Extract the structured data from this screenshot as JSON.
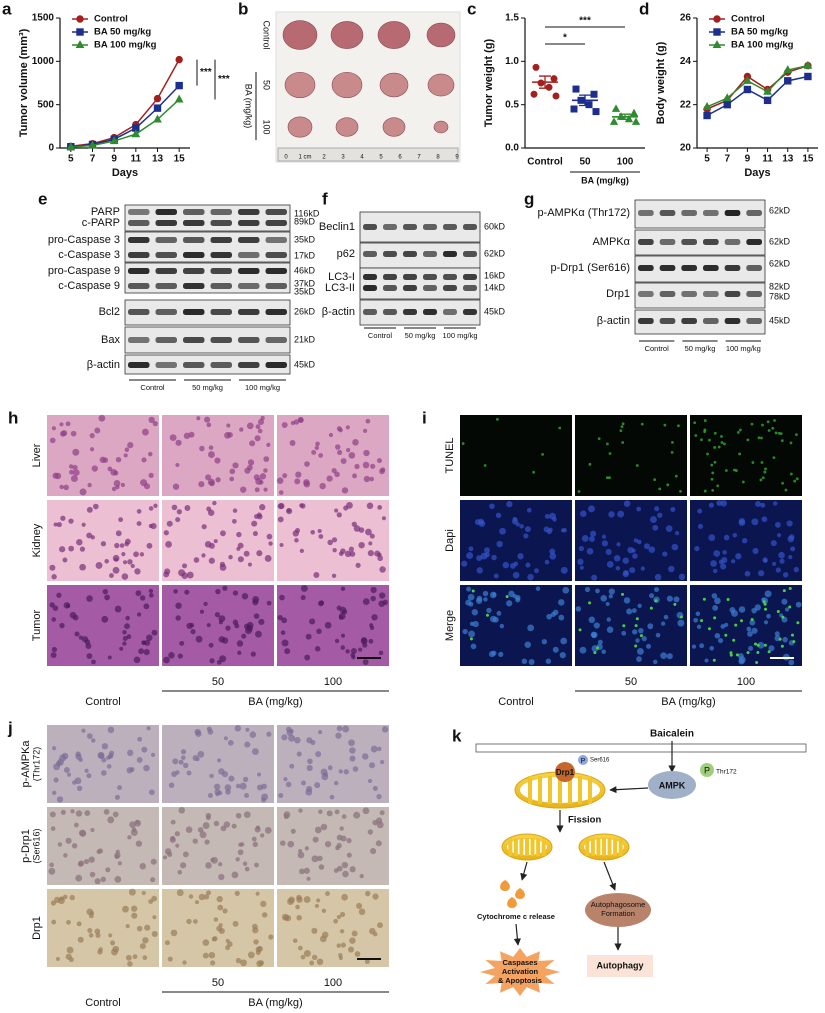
{
  "chart_data": [
    {
      "type": "line",
      "letter": "a",
      "ylabel": "Tumor volume (mm³)",
      "xlabel": "Days",
      "x": [
        5,
        7,
        9,
        11,
        13,
        15
      ],
      "xlim": [
        4,
        16
      ],
      "xticks": [
        5,
        7,
        9,
        11,
        13,
        15
      ],
      "ylim": [
        0,
        1500
      ],
      "yticks": [
        0,
        500,
        1000,
        1500
      ],
      "legend": "upper left",
      "series": [
        {
          "name": "Control",
          "color": "#a3201e",
          "marker": "circle",
          "values": [
            20,
            50,
            120,
            270,
            570,
            1020
          ]
        },
        {
          "name": "BA 50 mg/kg",
          "color": "#1c2f8c",
          "marker": "square",
          "values": [
            15,
            40,
            100,
            230,
            460,
            720
          ]
        },
        {
          "name": "BA 100 mg/kg",
          "color": "#2e8b2e",
          "marker": "triangle",
          "values": [
            10,
            30,
            80,
            160,
            330,
            560
          ]
        }
      ],
      "annotations": [
        "***",
        "***"
      ]
    },
    {
      "type": "dot",
      "letter": "c",
      "ylabel": "Tumor weight (g)",
      "categories": [
        "Control",
        "50",
        "100"
      ],
      "group_label": "BA (mg/kg)",
      "values": [
        0.76,
        0.55,
        0.36
      ],
      "errors": [
        0.07,
        0.06,
        0.03
      ],
      "points": [
        [
          0.93,
          0.8,
          0.75,
          0.7,
          0.62,
          0.6
        ],
        [
          0.68,
          0.62,
          0.55,
          0.5,
          0.45,
          0.42
        ],
        [
          0.45,
          0.4,
          0.36,
          0.33,
          0.3,
          0.3
        ]
      ],
      "colors": [
        "#a3201e",
        "#1c2f8c",
        "#2e8b2e"
      ],
      "markers": [
        "circle",
        "square",
        "triangle"
      ],
      "ylim": [
        0,
        1.5
      ],
      "yticks": [
        {
          "value": 0,
          "label": "0.0"
        },
        {
          "value": 0.5,
          "label": "0.5"
        },
        {
          "value": 1,
          "label": "1.0"
        },
        {
          "value": 1.5,
          "label": "1.5"
        }
      ],
      "annotations": [
        "*",
        "***"
      ]
    },
    {
      "type": "line",
      "letter": "d",
      "ylabel": "Body weight (g)",
      "xlabel": "Days",
      "x": [
        5,
        7,
        9,
        11,
        13,
        15
      ],
      "xlim": [
        4,
        16
      ],
      "xticks": [
        5,
        7,
        9,
        11,
        13,
        15
      ],
      "ylim": [
        20,
        26
      ],
      "yticks": [
        20,
        22,
        24,
        26
      ],
      "legend": "upper left",
      "series": [
        {
          "name": "Control",
          "color": "#a3201e",
          "marker": "circle",
          "values": [
            21.8,
            22.2,
            23.3,
            22.7,
            23.5,
            23.8
          ]
        },
        {
          "name": "BA 50 mg/kg",
          "color": "#1c2f8c",
          "marker": "square",
          "values": [
            21.5,
            22.0,
            22.7,
            22.2,
            23.1,
            23.3
          ]
        },
        {
          "name": "BA 100 mg/kg",
          "color": "#2e8b2e",
          "marker": "triangle",
          "values": [
            21.9,
            22.3,
            23.1,
            22.6,
            23.6,
            23.8
          ]
        }
      ]
    }
  ],
  "photo": {
    "letter": "b",
    "rows": [
      "Control",
      "50",
      "100"
    ],
    "group_label": "BA (mg/kg)",
    "ruler": [
      "0",
      "1 cm",
      "2",
      "3",
      "4",
      "5",
      "6",
      "7",
      "8",
      "9"
    ]
  },
  "blots": [
    {
      "letter": "e",
      "proteins": [
        "PARP",
        "c-PARP",
        "pro-Caspase 3",
        "c-Caspase 3",
        "pro-Caspase 9",
        "c-Caspase 9",
        "Bcl2",
        "Bax",
        "β-actin"
      ],
      "sizes": [
        "116kD",
        "89kD",
        "35kD",
        "17kD",
        "46kD",
        "37kD",
        "35kD",
        "26kD",
        "21kD",
        "45kD"
      ],
      "groups": [
        "Control",
        "50 mg/kg",
        "100 mg/kg"
      ]
    },
    {
      "letter": "f",
      "proteins": [
        "Beclin1",
        "p62",
        "LC3-I",
        "LC3-II",
        "β-actin"
      ],
      "sizes": [
        "60kD",
        "62kD",
        "16kD",
        "14kD",
        "45kD"
      ],
      "groups": [
        "Control",
        "50 mg/kg",
        "100 mg/kg"
      ]
    },
    {
      "letter": "g",
      "proteins": [
        "p-AMPKα (Thr172)",
        "AMPKα",
        "p-Drp1 (Ser616)",
        "Drp1",
        "β-actin"
      ],
      "sizes": [
        "62kD",
        "62kD",
        "62kD",
        "82kD",
        "78kD",
        "45kD"
      ],
      "groups": [
        "Control",
        "50 mg/kg",
        "100 mg/kg"
      ]
    }
  ],
  "histology": [
    {
      "letter": "h",
      "rows": [
        [
          "Liver"
        ],
        [
          "Kidney"
        ],
        [
          "Tumor"
        ]
      ],
      "columns": [
        "Control",
        "50",
        "100"
      ],
      "group_label": "BA (mg/kg)"
    },
    {
      "letter": "i",
      "rows": [
        [
          "TUNEL"
        ],
        [
          "Dapi"
        ],
        [
          "Merge"
        ]
      ],
      "columns": [
        "Control",
        "50",
        "100"
      ],
      "group_label": "BA (mg/kg)"
    },
    {
      "letter": "j",
      "rows": [
        [
          "p-AMPKa",
          "(Thr172)"
        ],
        [
          "p-Drp1",
          "(Ser616)"
        ],
        [
          "Drp1"
        ]
      ],
      "columns": [
        "Control",
        "50",
        "100"
      ],
      "group_label": "BA (mg/kg)"
    }
  ],
  "diagram": {
    "letter": "k",
    "stimulus": "Baicalein",
    "kinase": "AMPK",
    "kinase_phospho": "P",
    "kinase_site": "Thr172",
    "protein": "Drp1",
    "protein_phospho": "P",
    "protein_site": "Ser616",
    "step": "Fission",
    "left_event": "Cytochrome c release",
    "right_event": [
      "Autophagosome",
      "Formation"
    ],
    "left_outcome": [
      "Caspases",
      "Activation",
      "& Apoptosis"
    ],
    "right_outcome": "Autophagy"
  }
}
